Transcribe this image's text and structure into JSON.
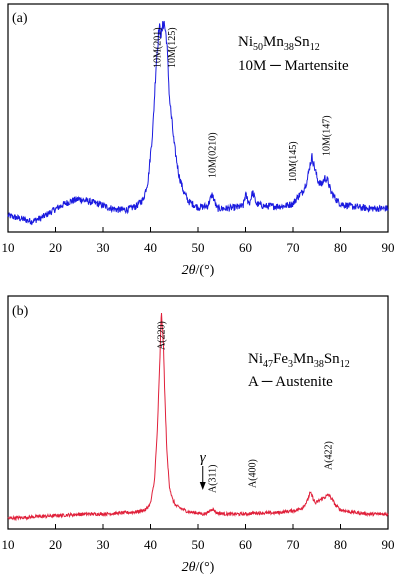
{
  "chart_data": [
    {
      "type": "line",
      "panel_label": "(a)",
      "xlabel_var": "2θ",
      "xlabel_unit": "/(°)",
      "xlim": [
        10,
        90
      ],
      "xticks": [
        10,
        20,
        30,
        40,
        50,
        60,
        70,
        80,
        90
      ],
      "color": "#1a1adf",
      "legend": [
        {
          "parts": [
            [
              "Ni",
              ""
            ],
            [
              "50",
              "sub"
            ],
            [
              "Mn",
              ""
            ],
            [
              "38",
              "sub"
            ],
            [
              "Sn",
              ""
            ],
            [
              "12",
              "sub"
            ]
          ]
        },
        {
          "parts": [
            [
              "10M ─ Martensite",
              ""
            ]
          ]
        }
      ],
      "peaks": [
        {
          "label": "10M(201)",
          "x": 41.5
        },
        {
          "label": "10M(125)",
          "x": 44.5
        },
        {
          "label": "10M(0210)",
          "x": 53.0
        },
        {
          "label": "10M(145)",
          "x": 70.0
        },
        {
          "label": "10M(147)",
          "x": 77.0
        }
      ],
      "series": [
        {
          "x": [
            10,
            12,
            14,
            15,
            17,
            19,
            21,
            23,
            25,
            27,
            29,
            31,
            33,
            35,
            37,
            38.5,
            39.5,
            40.5,
            41.2,
            41.8,
            42.3,
            42.8,
            43.4,
            44,
            45,
            46,
            47,
            48,
            50,
            52,
            53,
            54,
            56,
            58,
            59.5,
            60,
            60.8,
            61.5,
            62.3,
            64,
            66,
            68,
            70,
            71,
            72,
            73,
            73.5,
            74,
            74.6,
            75.2,
            76,
            76.7,
            77.3,
            78,
            79,
            80,
            82,
            84,
            86,
            88,
            90
          ],
          "y": [
            0.05,
            0.04,
            0.03,
            0.025,
            0.04,
            0.065,
            0.09,
            0.11,
            0.12,
            0.11,
            0.1,
            0.085,
            0.075,
            0.075,
            0.09,
            0.12,
            0.2,
            0.42,
            0.7,
            0.85,
            0.82,
            0.88,
            0.8,
            0.55,
            0.35,
            0.22,
            0.15,
            0.11,
            0.085,
            0.09,
            0.14,
            0.08,
            0.08,
            0.085,
            0.09,
            0.14,
            0.1,
            0.15,
            0.1,
            0.09,
            0.09,
            0.09,
            0.1,
            0.13,
            0.15,
            0.2,
            0.26,
            0.3,
            0.25,
            0.2,
            0.18,
            0.21,
            0.2,
            0.15,
            0.12,
            0.1,
            0.09,
            0.085,
            0.08,
            0.08,
            0.08
          ]
        }
      ]
    },
    {
      "type": "line",
      "panel_label": "(b)",
      "xlabel_var": "2θ",
      "xlabel_unit": "/(°)",
      "xlim": [
        10,
        90
      ],
      "xticks": [
        10,
        20,
        30,
        40,
        50,
        60,
        70,
        80,
        90
      ],
      "color": "#e0203a",
      "legend": [
        {
          "parts": [
            [
              "Ni",
              ""
            ],
            [
              "47",
              "sub"
            ],
            [
              "Fe",
              ""
            ],
            [
              "3",
              "sub"
            ],
            [
              "Mn",
              ""
            ],
            [
              "38",
              "sub"
            ],
            [
              "Sn",
              ""
            ],
            [
              "12",
              "sub"
            ]
          ]
        },
        {
          "parts": [
            [
              "A ─ Austenite",
              ""
            ]
          ]
        }
      ],
      "peaks": [
        {
          "label": "A(220)",
          "x": 42.3
        },
        {
          "label": "A(311)",
          "x": 53.0
        },
        {
          "label": "A(400)",
          "x": 61.5
        },
        {
          "label": "A(422)",
          "x": 77.5
        }
      ],
      "gamma_label": "γ",
      "gamma_x": 51.0,
      "series": [
        {
          "x": [
            10,
            14,
            18,
            22,
            26,
            30,
            34,
            37,
            39,
            40,
            40.8,
            41.4,
            41.9,
            42.3,
            42.7,
            43.1,
            43.5,
            44,
            44.6,
            45.3,
            46.5,
            48,
            50,
            51,
            52,
            53,
            54,
            56,
            58,
            60,
            62,
            64,
            66,
            68,
            70,
            71,
            72,
            73,
            73.6,
            74.1,
            74.7,
            75.3,
            76,
            76.8,
            77.5,
            78.2,
            79,
            80,
            82,
            84,
            86,
            88,
            90
          ],
          "y": [
            0.03,
            0.035,
            0.04,
            0.045,
            0.05,
            0.05,
            0.055,
            0.06,
            0.07,
            0.1,
            0.2,
            0.42,
            0.72,
            1.0,
            0.85,
            0.55,
            0.32,
            0.18,
            0.12,
            0.09,
            0.075,
            0.06,
            0.055,
            0.05,
            0.055,
            0.075,
            0.055,
            0.05,
            0.05,
            0.05,
            0.055,
            0.055,
            0.055,
            0.06,
            0.065,
            0.07,
            0.08,
            0.11,
            0.15,
            0.13,
            0.1,
            0.11,
            0.12,
            0.13,
            0.14,
            0.12,
            0.09,
            0.07,
            0.06,
            0.055,
            0.05,
            0.05,
            0.05
          ]
        }
      ]
    }
  ]
}
